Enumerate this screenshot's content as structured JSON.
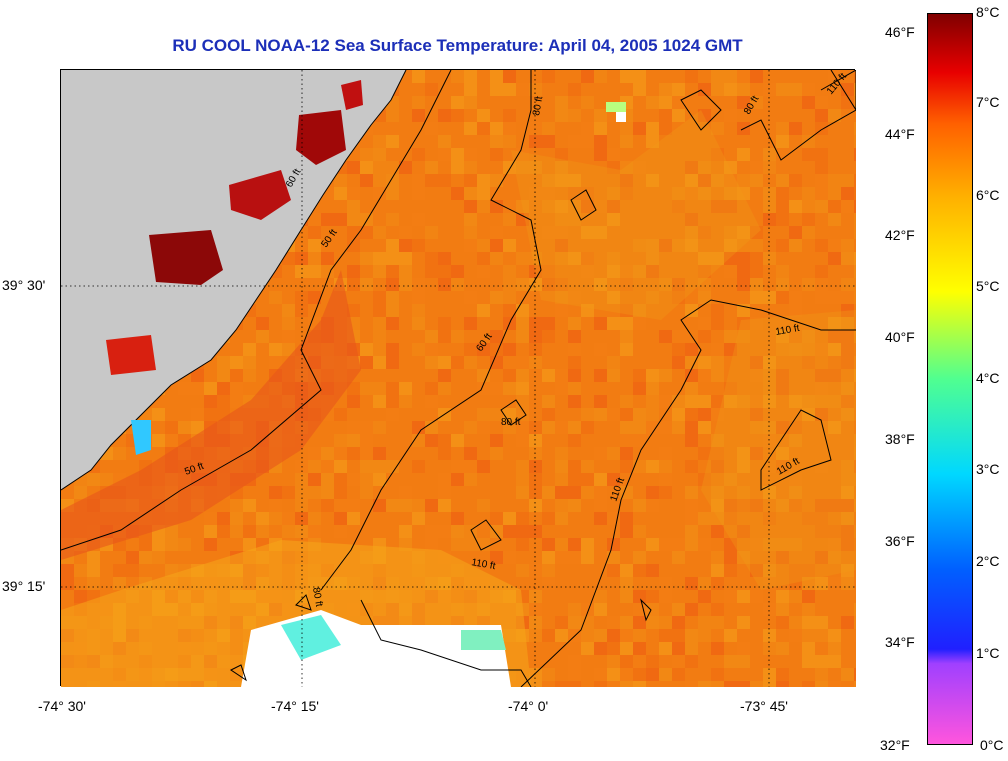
{
  "title": "RU COOL  NOAA-12  Sea Surface Temperature:  April 04, 2005 1024 GMT",
  "map": {
    "lon_range": [
      -74.5,
      -73.65
    ],
    "lat_range": [
      39.17,
      39.69
    ],
    "lon_ticks": [
      "-74° 30'",
      "-74° 15'",
      "-74° 0'",
      "-73° 45'"
    ],
    "lat_ticks": [
      "39° 30'",
      "39° 15'"
    ],
    "contour_labels": [
      "80 ft",
      "60 ft",
      "50 ft",
      "60 ft",
      "80 ft",
      "110 ft",
      "50 ft",
      "110 ft",
      "110 ft",
      "80 ft",
      "110 ft",
      "80 ft",
      "110 ft"
    ],
    "colors": {
      "land": "#c8c8c8",
      "sea_base": "#f07a10",
      "warm": "#a00000",
      "cold": "#40f0f0",
      "cloud": "#ffffff"
    }
  },
  "colorbar": {
    "f_labels": [
      "46°F",
      "44°F",
      "42°F",
      "40°F",
      "38°F",
      "36°F",
      "34°F",
      "32°F"
    ],
    "c_labels": [
      "8°C",
      "7°C",
      "6°C",
      "5°C",
      "4°C",
      "3°C",
      "2°C",
      "1°C",
      "0°C"
    ]
  }
}
